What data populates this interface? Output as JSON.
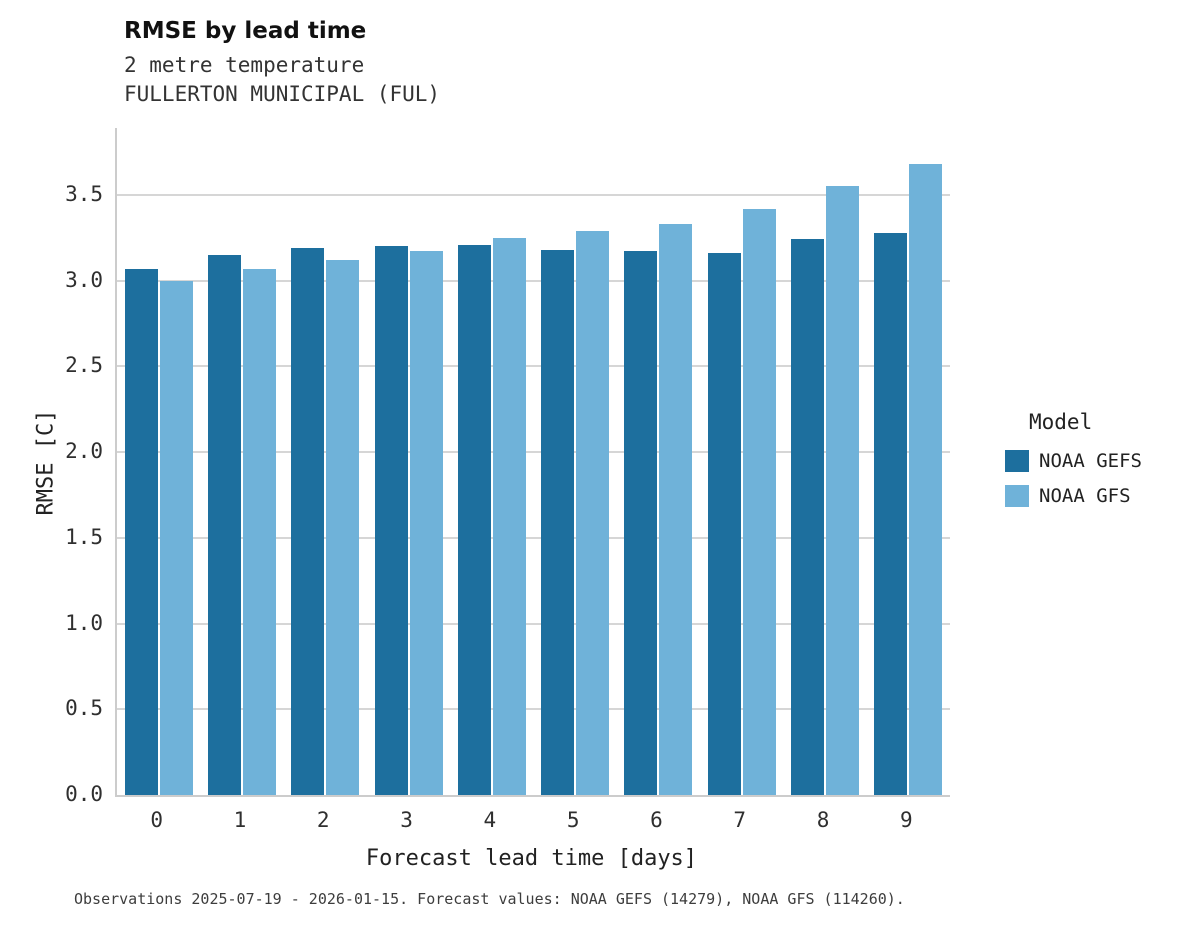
{
  "title": "RMSE by lead time",
  "subtitle1": "2 metre temperature",
  "subtitle2": "FULLERTON MUNICIPAL (FUL)",
  "caption": "Observations 2025-07-19 - 2026-01-15. Forecast values: NOAA GEFS (14279), NOAA GFS (114260).",
  "legend": {
    "title": "Model"
  },
  "chart_data": {
    "type": "bar",
    "title": "RMSE by lead time",
    "subtitle": "2 metre temperature / FULLERTON MUNICIPAL (FUL)",
    "xlabel": "Forecast lead time [days]",
    "ylabel": "RMSE [C]",
    "categories": [
      "0",
      "1",
      "2",
      "3",
      "4",
      "5",
      "6",
      "7",
      "8",
      "9"
    ],
    "series": [
      {
        "name": "NOAA GEFS",
        "color": "#1d6f9e",
        "values": [
          3.07,
          3.15,
          3.19,
          3.2,
          3.21,
          3.18,
          3.17,
          3.16,
          3.24,
          3.28
        ]
      },
      {
        "name": "NOAA GFS",
        "color": "#6fb2d9",
        "values": [
          3.0,
          3.07,
          3.12,
          3.17,
          3.25,
          3.29,
          3.33,
          3.42,
          3.55,
          3.68
        ]
      }
    ],
    "ylim": [
      0,
      3.89
    ],
    "yticks": [
      0.0,
      0.5,
      1.0,
      1.5,
      2.0,
      2.5,
      3.0,
      3.5
    ],
    "grid": true,
    "grid_axis": "y",
    "legend_position": "right"
  }
}
